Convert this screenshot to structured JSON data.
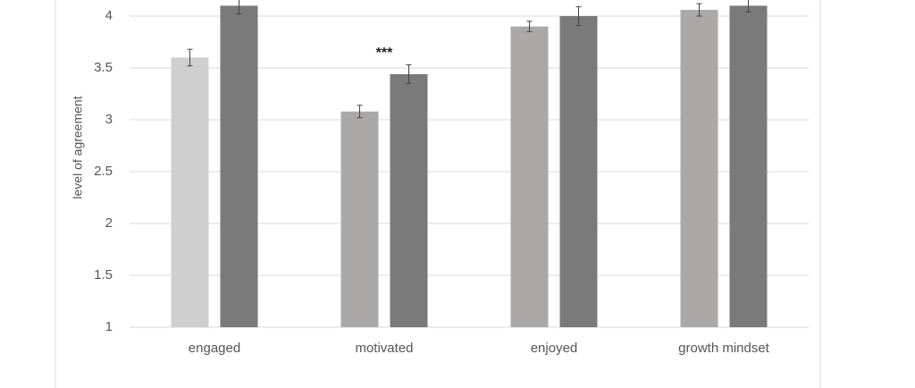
{
  "chart_data": {
    "type": "bar",
    "y_label": "level of agreement",
    "categories": [
      "engaged",
      "motivated",
      "enjoyed",
      "growth mindset"
    ],
    "series": [
      {
        "color": "#aaa9a8",
        "colors": [
          "#d0cfcf",
          "#aaa9a8",
          "#aaa9a8",
          "#aaa9a8"
        ],
        "values": [
          3.6,
          3.08,
          3.9,
          4.06
        ],
        "errors": [
          0.08,
          0.06,
          0.05,
          0.06
        ]
      },
      {
        "color": "#7a7a7a",
        "values": [
          4.1,
          3.44,
          4.0,
          4.1
        ],
        "errors": [
          0.08,
          0.09,
          0.09,
          0.06
        ]
      }
    ],
    "annotations": [
      {
        "text": "***",
        "category": 1
      }
    ],
    "ylim": [
      1,
      4.15
    ],
    "yticks": [
      1,
      1.5,
      2,
      2.5,
      3,
      3.5,
      4
    ],
    "grid": true
  }
}
